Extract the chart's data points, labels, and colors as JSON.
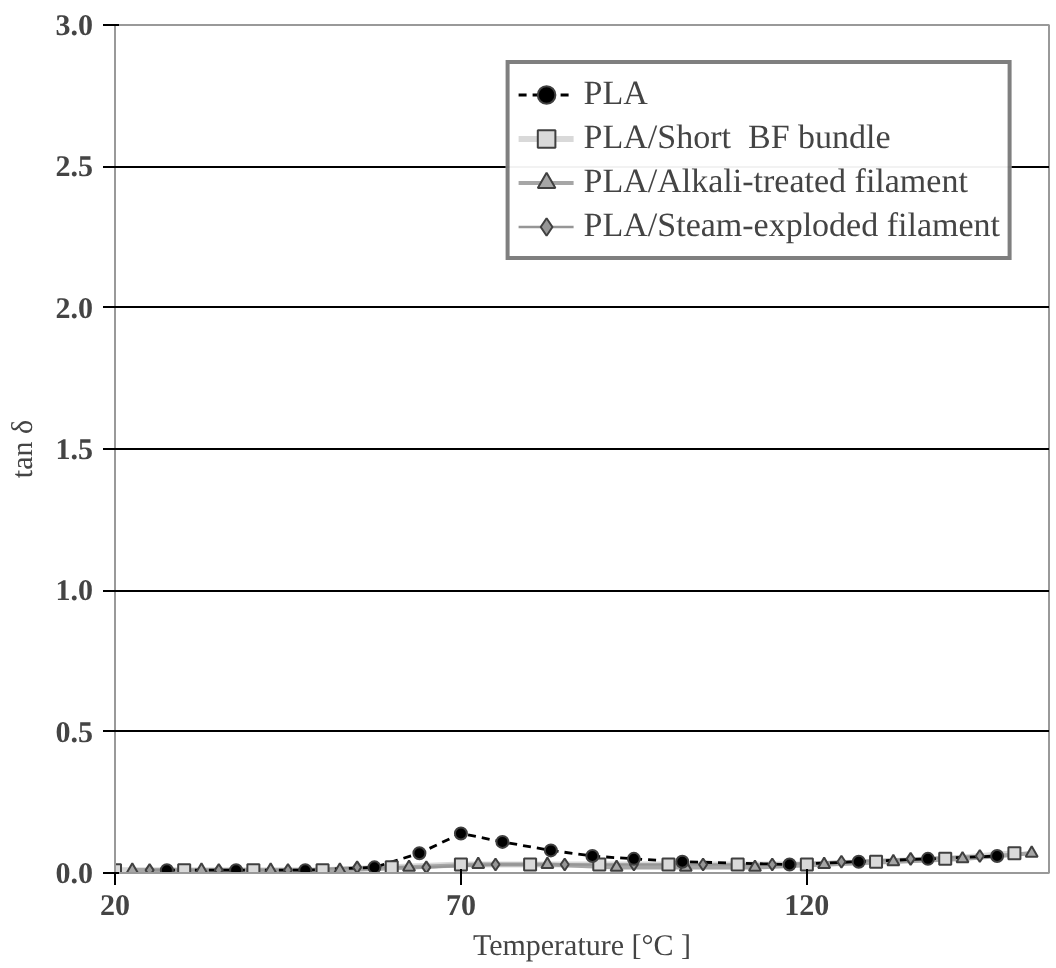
{
  "chart_data": {
    "type": "line",
    "xlabel": "Temperature [°C ]",
    "ylabel": "tan δ",
    "xlim": [
      20,
      155
    ],
    "ylim": [
      0,
      3
    ],
    "xticks": [
      20,
      70,
      120
    ],
    "yticks": [
      {
        "value": 0,
        "label": "0.0"
      },
      {
        "value": 0.5,
        "label": "0.5"
      },
      {
        "value": 1,
        "label": "1.0"
      },
      {
        "value": 1.5,
        "label": "1.5"
      },
      {
        "value": 2,
        "label": "2.0"
      },
      {
        "value": 2.5,
        "label": "2.5"
      },
      {
        "value": 3,
        "label": "3.0"
      }
    ],
    "grid": "y",
    "legend": "top right",
    "series": [
      {
        "name": "PLA",
        "color": "#000000",
        "marker": "circle",
        "line_style": "dashed",
        "x": [
          27.5,
          37.5,
          47.5,
          57.5,
          64,
          70,
          76,
          83,
          89,
          95,
          102,
          117.5,
          127.5,
          137.5,
          147.5
        ],
        "values": [
          0.01,
          0.01,
          0.01,
          0.02,
          0.07,
          0.14,
          0.11,
          0.08,
          0.06,
          0.05,
          0.04,
          0.03,
          0.04,
          0.05,
          0.06
        ]
      },
      {
        "name": "PLA/Short  BF bundle",
        "color": "#d9d9d9",
        "marker": "square",
        "line_style": "solid",
        "x": [
          20,
          30,
          40,
          50,
          60,
          70,
          80,
          90,
          100,
          110,
          120,
          130,
          140,
          150
        ],
        "values": [
          0.01,
          0.01,
          0.01,
          0.01,
          0.02,
          0.03,
          0.03,
          0.03,
          0.03,
          0.03,
          0.03,
          0.04,
          0.05,
          0.07
        ]
      },
      {
        "name": "PLA/Alkali-treated filament",
        "color": "#a6a6a6",
        "marker": "triangle",
        "line_style": "solid",
        "x": [
          22.5,
          32.5,
          42.5,
          52.5,
          62.5,
          72.5,
          82.5,
          92.5,
          102.5,
          112.5,
          122.5,
          132.5,
          142.5,
          152.5
        ],
        "values": [
          0.01,
          0.01,
          0.01,
          0.01,
          0.02,
          0.03,
          0.03,
          0.02,
          0.02,
          0.02,
          0.03,
          0.04,
          0.05,
          0.07
        ]
      },
      {
        "name": "PLA/Steam-exploded filament",
        "color": "#969696",
        "marker": "diamond",
        "line_style": "solid",
        "x": [
          25,
          35,
          45,
          55,
          65,
          75,
          85,
          95,
          105,
          115,
          125,
          135,
          145
        ],
        "values": [
          0.01,
          0.01,
          0.01,
          0.02,
          0.02,
          0.03,
          0.03,
          0.03,
          0.03,
          0.03,
          0.04,
          0.05,
          0.06
        ]
      }
    ]
  }
}
